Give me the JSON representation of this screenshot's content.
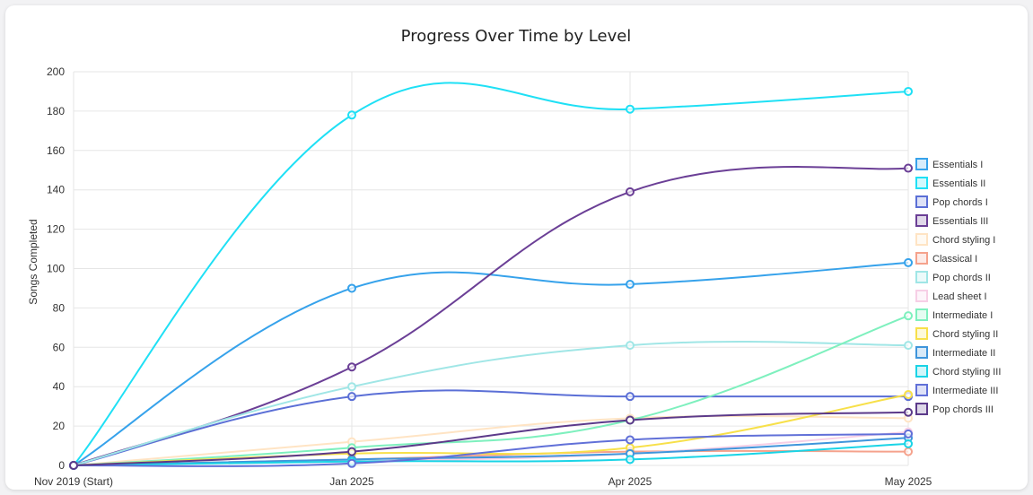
{
  "chart_data": {
    "type": "line",
    "title": "Progress Over Time by Level",
    "ylabel": "Songs Completed",
    "xlabel": "",
    "categories": [
      "Nov 2019 (Start)",
      "Jan 2025",
      "Apr 2025",
      "May 2025"
    ],
    "ylim": [
      0,
      200
    ],
    "yticks": [
      0,
      20,
      40,
      60,
      80,
      100,
      120,
      140,
      160,
      180,
      200
    ],
    "grid": true,
    "legend_position": "right",
    "series": [
      {
        "name": "Essentials I",
        "color": "#36a2eb",
        "values": [
          0,
          90,
          92,
          103
        ]
      },
      {
        "name": "Essentials II",
        "color": "#1fe0f5",
        "values": [
          0,
          178,
          181,
          190
        ]
      },
      {
        "name": "Pop chords I",
        "color": "#5b6fd6",
        "values": [
          0,
          35,
          35,
          35
        ]
      },
      {
        "name": "Essentials III",
        "color": "#6b3f96",
        "values": [
          0,
          50,
          139,
          151
        ]
      },
      {
        "name": "Chord styling I",
        "color": "#ffe4c4",
        "values": [
          0,
          12,
          24,
          24
        ]
      },
      {
        "name": "Classical I",
        "color": "#f5a28c",
        "values": [
          0,
          3,
          7,
          7
        ]
      },
      {
        "name": "Pop chords II",
        "color": "#a0e6e6",
        "values": [
          0,
          40,
          61,
          61
        ]
      },
      {
        "name": "Lead sheet I",
        "color": "#f7cfe6",
        "values": [
          0,
          2,
          6,
          17
        ]
      },
      {
        "name": "Intermediate I",
        "color": "#7ef0be",
        "values": [
          0,
          9,
          23,
          76
        ]
      },
      {
        "name": "Chord styling II",
        "color": "#f7e04a",
        "values": [
          0,
          6,
          9,
          36
        ]
      },
      {
        "name": "Intermediate II",
        "color": "#3f95db",
        "values": [
          0,
          3,
          6,
          14
        ]
      },
      {
        "name": "Chord styling III",
        "color": "#1ad4e6",
        "values": [
          0,
          2,
          3,
          11
        ]
      },
      {
        "name": "Intermediate III",
        "color": "#6170d8",
        "values": [
          0,
          1,
          13,
          16
        ]
      },
      {
        "name": "Pop chords III",
        "color": "#5c3a8a",
        "values": [
          0,
          7,
          23,
          27
        ]
      }
    ]
  }
}
